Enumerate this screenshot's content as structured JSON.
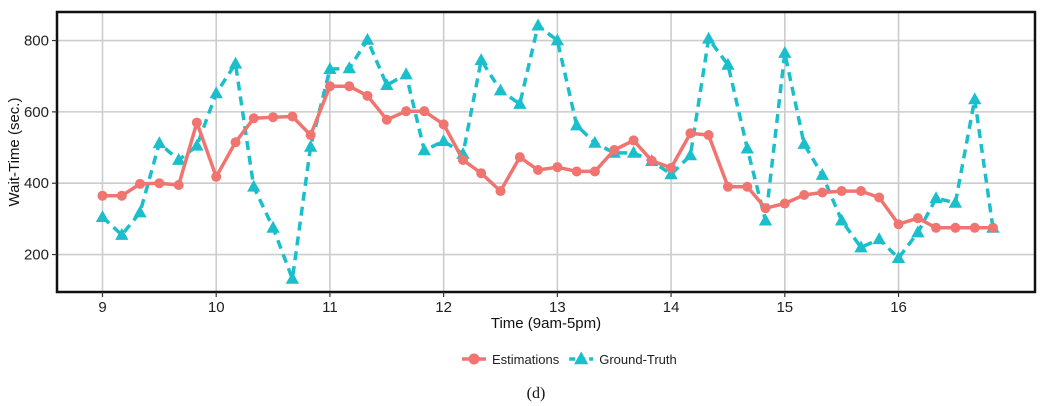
{
  "chart_data": {
    "type": "line",
    "xlabel": "Time (9am-5pm)",
    "ylabel": "Wait-Time (sec.)",
    "xlim": [
      8.6,
      17.2
    ],
    "ylim": [
      95,
      880
    ],
    "x_ticks": [
      9,
      10,
      11,
      12,
      13,
      14,
      15,
      16
    ],
    "y_ticks": [
      200,
      400,
      600,
      800
    ],
    "grid": true,
    "legend_position": "bottom-center",
    "caption": "(d)",
    "series": [
      {
        "name": "Estimations",
        "color": "#f07470",
        "marker": "circle",
        "line_style": "solid",
        "x": [
          9.0,
          9.17,
          9.33,
          9.5,
          9.67,
          9.83,
          10.0,
          10.17,
          10.33,
          10.5,
          10.67,
          10.83,
          11.0,
          11.17,
          11.33,
          11.5,
          11.67,
          11.83,
          12.0,
          12.17,
          12.33,
          12.5,
          12.67,
          12.83,
          13.0,
          13.17,
          13.33,
          13.5,
          13.67,
          13.83,
          14.0,
          14.17,
          14.33,
          14.5,
          14.67,
          14.83,
          15.0,
          15.17,
          15.33,
          15.5,
          15.67,
          15.83,
          16.0,
          16.17,
          16.33,
          16.5,
          16.67,
          16.83
        ],
        "y": [
          365,
          365,
          398,
          400,
          395,
          570,
          418,
          515,
          582,
          585,
          587,
          535,
          672,
          672,
          645,
          578,
          602,
          602,
          565,
          465,
          428,
          378,
          473,
          437,
          445,
          433,
          433,
          493,
          520,
          463,
          443,
          540,
          535,
          390,
          390,
          330,
          343,
          367,
          374,
          378,
          378,
          360,
          285,
          302,
          275,
          275,
          275,
          275
        ]
      },
      {
        "name": "Ground-Truth",
        "color": "#1bbfcc",
        "marker": "triangle",
        "line_style": "dashed",
        "x": [
          9.0,
          9.17,
          9.33,
          9.5,
          9.67,
          9.83,
          10.0,
          10.17,
          10.33,
          10.5,
          10.67,
          10.83,
          11.0,
          11.17,
          11.33,
          11.5,
          11.67,
          11.83,
          12.0,
          12.17,
          12.33,
          12.5,
          12.67,
          12.83,
          13.0,
          13.17,
          13.33,
          13.5,
          13.67,
          13.83,
          14.0,
          14.17,
          14.33,
          14.5,
          14.67,
          14.83,
          15.0,
          15.17,
          15.33,
          15.5,
          15.67,
          15.83,
          16.0,
          16.17,
          16.33,
          16.5,
          16.67,
          16.83
        ],
        "y": [
          305,
          255,
          318,
          512,
          465,
          505,
          652,
          735,
          390,
          275,
          132,
          502,
          720,
          722,
          802,
          675,
          705,
          492,
          518,
          482,
          745,
          660,
          622,
          842,
          800,
          562,
          513,
          485,
          485,
          462,
          425,
          478,
          805,
          732,
          497,
          295,
          765,
          510,
          423,
          295,
          220,
          243,
          190,
          262,
          358,
          345,
          635,
          275
        ]
      }
    ]
  }
}
